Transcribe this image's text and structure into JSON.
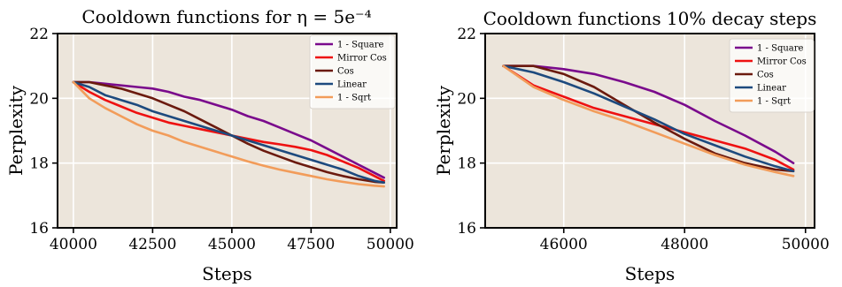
{
  "chart_data": [
    {
      "type": "line",
      "title": "Cooldown functions for η = 5e⁻⁴",
      "xlabel": "Steps",
      "ylabel": "Perplexity",
      "xlim": [
        39500,
        50200
      ],
      "ylim": [
        16,
        22
      ],
      "xticks": [
        40000,
        42500,
        45000,
        47500,
        50000
      ],
      "xtick_labels": [
        "40000",
        "42500",
        "45000",
        "47500",
        "50000"
      ],
      "yticks": [
        16,
        18,
        20,
        22
      ],
      "ytick_labels": [
        "16",
        "18",
        "20",
        "22"
      ],
      "grid": true,
      "legend_position": "top-right",
      "series": [
        {
          "name": "1 - Square",
          "color": "#7a0a8c",
          "x": [
            40000,
            40500,
            41000,
            41500,
            42000,
            42500,
            43000,
            43500,
            44000,
            44500,
            45000,
            45500,
            46000,
            46500,
            47000,
            47500,
            48000,
            48500,
            49000,
            49500,
            49800
          ],
          "y": [
            20.5,
            20.5,
            20.45,
            20.4,
            20.35,
            20.3,
            20.2,
            20.05,
            19.95,
            19.8,
            19.65,
            19.45,
            19.3,
            19.1,
            18.9,
            18.7,
            18.45,
            18.2,
            17.95,
            17.7,
            17.55
          ]
        },
        {
          "name": "Mirror Cos",
          "color": "#ee1111",
          "x": [
            40000,
            40500,
            41000,
            41500,
            42000,
            42500,
            43000,
            43500,
            44000,
            44500,
            45000,
            45500,
            46000,
            46500,
            47000,
            47500,
            48000,
            48500,
            49000,
            49500,
            49800
          ],
          "y": [
            20.5,
            20.2,
            19.95,
            19.75,
            19.55,
            19.4,
            19.25,
            19.15,
            19.05,
            18.95,
            18.85,
            18.75,
            18.65,
            18.58,
            18.5,
            18.4,
            18.25,
            18.05,
            17.85,
            17.6,
            17.45
          ]
        },
        {
          "name": "Cos",
          "color": "#6b1a0e",
          "x": [
            40000,
            40500,
            41000,
            41500,
            42000,
            42500,
            43000,
            43500,
            44000,
            44500,
            45000,
            45500,
            46000,
            46500,
            47000,
            47500,
            48000,
            48500,
            49000,
            49500,
            49800
          ],
          "y": [
            20.5,
            20.5,
            20.4,
            20.3,
            20.15,
            20.0,
            19.8,
            19.6,
            19.35,
            19.1,
            18.85,
            18.6,
            18.38,
            18.2,
            18.02,
            17.87,
            17.72,
            17.6,
            17.5,
            17.42,
            17.4
          ]
        },
        {
          "name": "Linear",
          "color": "#1d4a7e",
          "x": [
            40000,
            40500,
            41000,
            41500,
            42000,
            42500,
            43000,
            43500,
            44000,
            44500,
            45000,
            45500,
            46000,
            46500,
            47000,
            47500,
            48000,
            48500,
            49000,
            49500,
            49800
          ],
          "y": [
            20.5,
            20.35,
            20.1,
            19.95,
            19.8,
            19.6,
            19.45,
            19.3,
            19.15,
            19.0,
            18.85,
            18.7,
            18.55,
            18.4,
            18.25,
            18.1,
            17.95,
            17.8,
            17.6,
            17.45,
            17.4
          ]
        },
        {
          "name": "1 - Sqrt",
          "color": "#f29c5a",
          "x": [
            40000,
            40500,
            41000,
            41500,
            42000,
            42500,
            43000,
            43500,
            44000,
            44500,
            45000,
            45500,
            46000,
            46500,
            47000,
            47500,
            48000,
            48500,
            49000,
            49500,
            49800
          ],
          "y": [
            20.5,
            20.0,
            19.7,
            19.45,
            19.2,
            19.0,
            18.85,
            18.65,
            18.5,
            18.35,
            18.2,
            18.05,
            17.92,
            17.8,
            17.7,
            17.6,
            17.5,
            17.42,
            17.35,
            17.3,
            17.28
          ]
        }
      ]
    },
    {
      "type": "line",
      "title": "Cooldown functions 10% decay steps",
      "xlabel": "Steps",
      "ylabel": "Perplexity",
      "xlim": [
        44700,
        50150
      ],
      "ylim": [
        16,
        22
      ],
      "xticks": [
        46000,
        48000,
        50000
      ],
      "xtick_labels": [
        "46000",
        "48000",
        "50000"
      ],
      "yticks": [
        16,
        18,
        20,
        22
      ],
      "ytick_labels": [
        "16",
        "18",
        "20",
        "22"
      ],
      "grid": true,
      "legend_position": "top-right",
      "series": [
        {
          "name": "1 - Square",
          "color": "#7a0a8c",
          "x": [
            45000,
            45500,
            46000,
            46500,
            47000,
            47500,
            48000,
            48500,
            49000,
            49500,
            49800
          ],
          "y": [
            21.0,
            21.0,
            20.9,
            20.75,
            20.5,
            20.2,
            19.8,
            19.3,
            18.85,
            18.35,
            18.0
          ]
        },
        {
          "name": "Mirror Cos",
          "color": "#ee1111",
          "x": [
            45000,
            45500,
            46000,
            46500,
            47000,
            47500,
            48000,
            48500,
            49000,
            49500,
            49800
          ],
          "y": [
            21.0,
            20.4,
            20.05,
            19.7,
            19.45,
            19.2,
            18.95,
            18.7,
            18.45,
            18.1,
            17.8
          ]
        },
        {
          "name": "Cos",
          "color": "#6b1a0e",
          "x": [
            45000,
            45500,
            46000,
            46500,
            47000,
            47500,
            48000,
            48500,
            49000,
            49500,
            49800
          ],
          "y": [
            21.0,
            21.0,
            20.75,
            20.35,
            19.8,
            19.25,
            18.75,
            18.3,
            18.0,
            17.8,
            17.75
          ]
        },
        {
          "name": "Linear",
          "color": "#1d4a7e",
          "x": [
            45000,
            45500,
            46000,
            46500,
            47000,
            47500,
            48000,
            48500,
            49000,
            49500,
            49800
          ],
          "y": [
            21.0,
            20.8,
            20.5,
            20.15,
            19.75,
            19.35,
            18.9,
            18.55,
            18.2,
            17.9,
            17.75
          ]
        },
        {
          "name": "1 - Sqrt",
          "color": "#f29c5a",
          "x": [
            45000,
            45500,
            46000,
            46500,
            47000,
            47500,
            48000,
            48500,
            49000,
            49500,
            49800
          ],
          "y": [
            21.0,
            20.35,
            19.95,
            19.6,
            19.3,
            18.95,
            18.6,
            18.25,
            17.95,
            17.72,
            17.6
          ]
        }
      ]
    }
  ]
}
